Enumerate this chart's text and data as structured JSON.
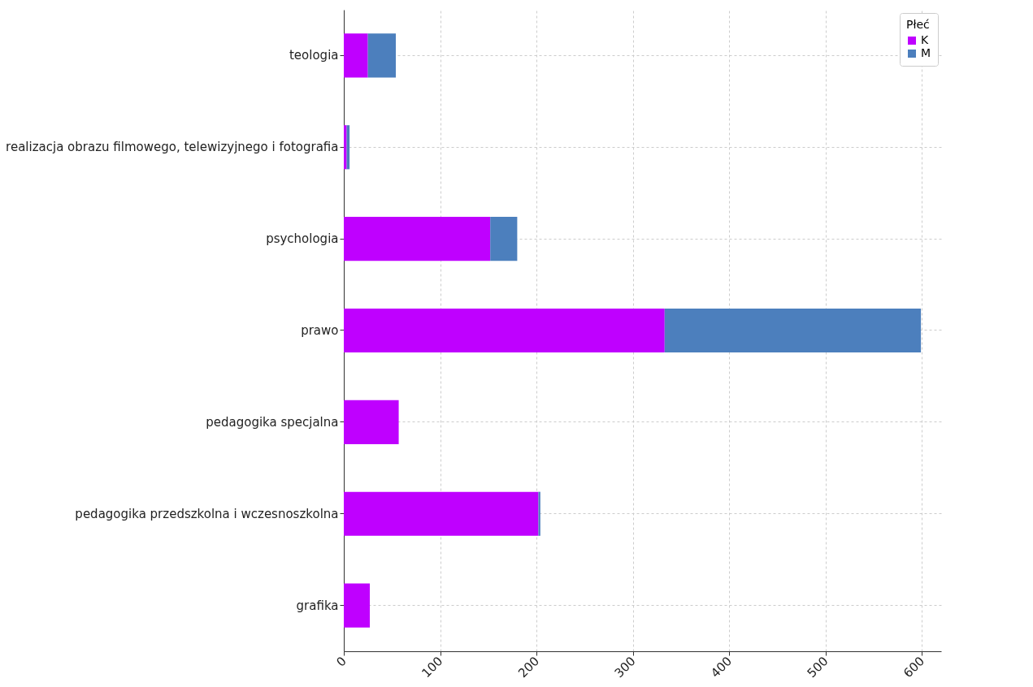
{
  "chart_data": {
    "type": "bar",
    "orientation": "horizontal",
    "stacked": true,
    "categories": [
      "teologia",
      "realizacja obrazu filmowego, telewizyjnego i fotografia",
      "psychologia",
      "prawo",
      "pedagogika specjalna",
      "pedagogika przedszkolna i wczesnoszkolna",
      "grafika"
    ],
    "series": [
      {
        "name": "K",
        "color": "#bf00ff",
        "values": [
          25,
          3,
          152,
          333,
          57,
          202,
          27
        ]
      },
      {
        "name": "M",
        "color": "#4c7fbd",
        "values": [
          29,
          3,
          28,
          266,
          0,
          2,
          0
        ]
      }
    ],
    "legend_title": "Płeć",
    "legend": "top right",
    "xlim": [
      0,
      620
    ],
    "xticks": [
      0,
      100,
      200,
      300,
      400,
      500,
      600
    ],
    "grid": true
  }
}
